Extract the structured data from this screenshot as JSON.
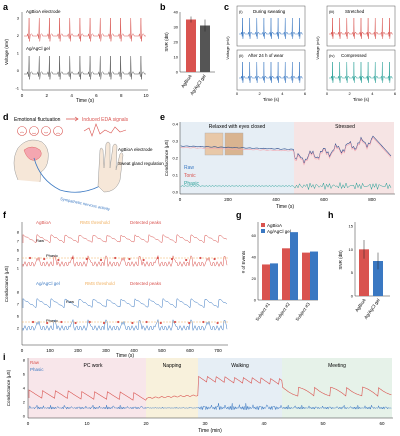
{
  "panels": {
    "a": {
      "label": "a",
      "electrode1": "AgBioA electrode",
      "electrode2": "Ag/AgCl gel",
      "ylabel": "Voltage (mV)",
      "xlabel": "Time (s)",
      "xticks": [
        "0",
        "2",
        "4",
        "6",
        "8",
        "10"
      ],
      "yticks": [
        "3",
        "2",
        "1",
        "0",
        "-1"
      ]
    },
    "b": {
      "label": "b",
      "ylabel": "SNR (dB)",
      "cats": [
        "AgBioA",
        "Ag/AgCl gel"
      ],
      "yticks": [
        "0",
        "10",
        "20",
        "30",
        "40"
      ]
    },
    "c": {
      "label": "c",
      "sub": [
        "(i)",
        "(ii)",
        "(iii)",
        "(iv)"
      ],
      "titles": [
        "During sweating",
        "After 24 h of wear",
        "Stretched",
        "Compressed"
      ],
      "ylabel": "Voltage (mV)",
      "xlabel": "Time (s)",
      "xticks": [
        "0",
        "2",
        "4",
        "6"
      ]
    },
    "d": {
      "label": "d",
      "emotional": "Emotional fluctuation",
      "induced": "Induced EDA signals",
      "electrode": "AgBioA electrode",
      "gland": "Sweat gland regulation",
      "nerve": "Sympathetic nervous activity"
    },
    "e": {
      "label": "e",
      "relaxed": "Relaxed with eyes closed",
      "stressed": "Stressed",
      "ylabel": "Conductance (μS)",
      "xlabel": "Time (s)",
      "xticks": [
        "0",
        "200",
        "400",
        "600",
        "800"
      ],
      "yticks": [
        "0.4",
        "0.3",
        "0.2",
        "0.1",
        "0.0"
      ],
      "legend": [
        "Raw",
        "Tonic",
        "Phasic"
      ]
    },
    "f": {
      "label": "f",
      "legend1": [
        "AgBioA",
        "RMS threshold",
        "Detected peaks"
      ],
      "legend2": [
        "Ag/AgCl gel",
        "RMS threshold",
        "Detected peaks"
      ],
      "raw": "Raw",
      "phasic": "Phasic",
      "ylabel": "Conductance (μS)",
      "xlabel": "Time (s)",
      "xticks": [
        "0",
        "100",
        "200",
        "300",
        "400",
        "500",
        "600",
        "700"
      ],
      "yticks1": [
        "8",
        "7",
        "6",
        "2",
        "1"
      ],
      "yticks2": [
        "8",
        "7",
        "6",
        "2"
      ]
    },
    "g": {
      "label": "g",
      "ylabel": "# of Events",
      "legend": [
        "AgBioA",
        "Ag/AgCl gel"
      ],
      "cats": [
        "Subject #1",
        "Subject #2",
        "Subject #3"
      ],
      "yticks": [
        "0",
        "20",
        "40",
        "60"
      ]
    },
    "h": {
      "label": "h",
      "ylabel": "SNR (dB)",
      "cats": [
        "AgBioA",
        "Ag/AgCl gel"
      ],
      "yticks": [
        "0",
        "5",
        "10",
        "15"
      ]
    },
    "i": {
      "label": "i",
      "legend": [
        "Raw",
        "Phasic"
      ],
      "segments": [
        "PC work",
        "Napping",
        "Walking",
        "Meeting"
      ],
      "ylabel": "Conductance (μS)",
      "xlabel": "Time (min)",
      "xticks": [
        "0",
        "10",
        "20",
        "30",
        "40",
        "50",
        "60"
      ],
      "yticks": [
        "8",
        "6",
        "4",
        "2",
        "0"
      ]
    }
  },
  "colors": {
    "red": "#d9534f",
    "gray": "#555555",
    "blue": "#3a78c2",
    "teal": "#2aa198",
    "navy": "#2b4a8a",
    "pink": "#f4a6b0",
    "orange": "#f0b060"
  },
  "chart_data": [
    {
      "type": "bar",
      "panel": "b",
      "categories": [
        "AgBioA",
        "Ag/AgCl gel"
      ],
      "values": [
        35,
        31
      ],
      "errors": [
        2,
        4
      ],
      "ylim": [
        0,
        40
      ],
      "ylabel": "SNR (dB)"
    },
    {
      "type": "bar",
      "panel": "g",
      "categories": [
        "Subject #1",
        "Subject #2",
        "Subject #3"
      ],
      "series": [
        {
          "name": "AgBioA",
          "values": [
            33,
            48,
            44
          ]
        },
        {
          "name": "Ag/AgCl gel",
          "values": [
            34,
            63,
            45
          ]
        }
      ],
      "ylim": [
        0,
        65
      ],
      "ylabel": "# of Events"
    },
    {
      "type": "bar",
      "panel": "h",
      "categories": [
        "AgBioA",
        "Ag/AgCl gel"
      ],
      "values": [
        10,
        7.5
      ],
      "errors": [
        2,
        1.8
      ],
      "ylim": [
        0,
        15
      ],
      "ylabel": "SNR (dB)"
    }
  ]
}
